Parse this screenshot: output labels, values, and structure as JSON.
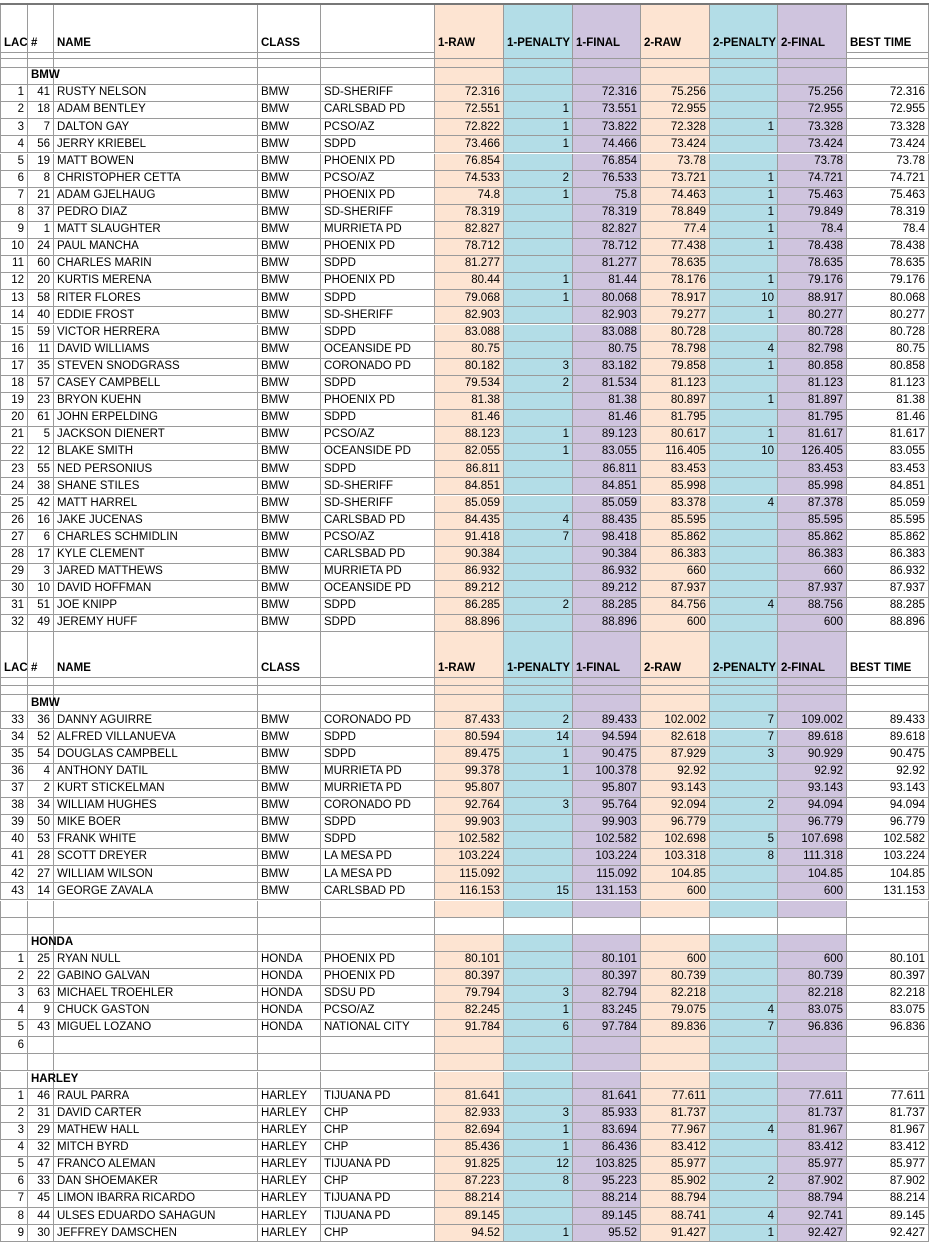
{
  "sections": [
    {
      "header": [
        "LAC",
        "#",
        "NAME",
        "CLASS",
        null,
        "1-RAW",
        "1-PENALTY",
        "1-FINAL",
        "2-RAW",
        "2-PENALTY",
        "2-FINAL",
        "BEST TIME"
      ],
      "groups": [
        {
          "label": "BMW",
          "rows": [
            [
              1,
              41,
              "RUSTY NELSON",
              "BMW",
              "SD-SHERIFF",
              72.316,
              null,
              72.316,
              75.256,
              null,
              75.256,
              72.316
            ],
            [
              2,
              18,
              "ADAM BENTLEY",
              "BMW",
              "CARLSBAD PD",
              72.551,
              1,
              73.551,
              72.955,
              null,
              72.955,
              72.955
            ],
            [
              3,
              7,
              "DALTON GAY",
              "BMW",
              "PCSO/AZ",
              72.822,
              1,
              73.822,
              72.328,
              1,
              73.328,
              73.328
            ],
            [
              4,
              56,
              "JERRY KRIEBEL",
              "BMW",
              "SDPD",
              73.466,
              1,
              74.466,
              73.424,
              null,
              73.424,
              73.424
            ],
            [
              5,
              19,
              "MATT BOWEN",
              "BMW",
              "PHOENIX PD",
              76.854,
              null,
              76.854,
              73.78,
              null,
              73.78,
              73.78
            ],
            [
              6,
              8,
              "CHRISTOPHER CETTA",
              "BMW",
              "PCSO/AZ",
              74.533,
              2,
              76.533,
              73.721,
              1,
              74.721,
              74.721
            ],
            [
              7,
              21,
              "ADAM GJELHAUG",
              "BMW",
              "PHOENIX PD",
              74.8,
              1,
              75.8,
              74.463,
              1,
              75.463,
              75.463
            ],
            [
              8,
              37,
              "PEDRO DIAZ",
              "BMW",
              "SD-SHERIFF",
              78.319,
              null,
              78.319,
              78.849,
              1,
              79.849,
              78.319
            ],
            [
              9,
              1,
              "MATT SLAUGHTER",
              "BMW",
              "MURRIETA PD",
              82.827,
              null,
              82.827,
              77.4,
              1,
              78.4,
              78.4
            ],
            [
              10,
              24,
              "PAUL MANCHA",
              "BMW",
              "PHOENIX PD",
              78.712,
              null,
              78.712,
              77.438,
              1,
              78.438,
              78.438
            ],
            [
              11,
              60,
              "CHARLES MARIN",
              "BMW",
              "SDPD",
              81.277,
              null,
              81.277,
              78.635,
              null,
              78.635,
              78.635
            ],
            [
              12,
              20,
              "KURTIS MERENA",
              "BMW",
              "PHOENIX PD",
              80.44,
              1,
              81.44,
              78.176,
              1,
              79.176,
              79.176
            ],
            [
              13,
              58,
              "RITER FLORES",
              "BMW",
              "SDPD",
              79.068,
              1,
              80.068,
              78.917,
              10,
              88.917,
              80.068
            ],
            [
              14,
              40,
              "EDDIE FROST",
              "BMW",
              "SD-SHERIFF",
              82.903,
              null,
              82.903,
              79.277,
              1,
              80.277,
              80.277
            ],
            [
              15,
              59,
              "VICTOR HERRERA",
              "BMW",
              "SDPD",
              83.088,
              null,
              83.088,
              80.728,
              null,
              80.728,
              80.728
            ],
            [
              16,
              11,
              "DAVID WILLIAMS",
              "BMW",
              "OCEANSIDE PD",
              80.75,
              null,
              80.75,
              78.798,
              4,
              82.798,
              80.75
            ],
            [
              17,
              35,
              "STEVEN SNODGRASS",
              "BMW",
              "CORONADO PD",
              80.182,
              3,
              83.182,
              79.858,
              1,
              80.858,
              80.858
            ],
            [
              18,
              57,
              "CASEY CAMPBELL",
              "BMW",
              "SDPD",
              79.534,
              2,
              81.534,
              81.123,
              null,
              81.123,
              81.123
            ],
            [
              19,
              23,
              "BRYON KUEHN",
              "BMW",
              "PHOENIX PD",
              81.38,
              null,
              81.38,
              80.897,
              1,
              81.897,
              81.38
            ],
            [
              20,
              61,
              "JOHN ERPELDING",
              "BMW",
              "SDPD",
              81.46,
              null,
              81.46,
              81.795,
              null,
              81.795,
              81.46
            ],
            [
              21,
              5,
              "JACKSON DIENERT",
              "BMW",
              "PCSO/AZ",
              88.123,
              1,
              89.123,
              80.617,
              1,
              81.617,
              81.617
            ],
            [
              22,
              12,
              "BLAKE SMITH",
              "BMW",
              "OCEANSIDE PD",
              82.055,
              1,
              83.055,
              116.405,
              10,
              126.405,
              83.055
            ],
            [
              23,
              55,
              "NED PERSONIUS",
              "BMW",
              "SDPD",
              86.811,
              null,
              86.811,
              83.453,
              null,
              83.453,
              83.453
            ],
            [
              24,
              38,
              "SHANE STILES",
              "BMW",
              "SD-SHERIFF",
              84.851,
              null,
              84.851,
              85.998,
              null,
              85.998,
              84.851
            ],
            [
              25,
              42,
              "MATT HARREL",
              "BMW",
              "SD-SHERIFF",
              85.059,
              null,
              85.059,
              83.378,
              4,
              87.378,
              85.059
            ],
            [
              26,
              16,
              "JAKE JUCENAS",
              "BMW",
              "CARLSBAD PD",
              84.435,
              4,
              88.435,
              85.595,
              null,
              85.595,
              85.595
            ],
            [
              27,
              6,
              "CHARLES SCHMIDLIN",
              "BMW",
              "PCSO/AZ",
              91.418,
              7,
              98.418,
              85.862,
              null,
              85.862,
              85.862
            ],
            [
              28,
              17,
              "KYLE CLEMENT",
              "BMW",
              "CARLSBAD PD",
              90.384,
              null,
              90.384,
              86.383,
              null,
              86.383,
              86.383
            ],
            [
              29,
              3,
              "JARED MATTHEWS",
              "BMW",
              "MURRIETA PD",
              86.932,
              null,
              86.932,
              660,
              null,
              660,
              86.932
            ],
            [
              30,
              10,
              "DAVID HOFFMAN",
              "BMW",
              "OCEANSIDE PD",
              89.212,
              null,
              89.212,
              87.937,
              null,
              87.937,
              87.937
            ],
            [
              31,
              51,
              "JOE KNIPP",
              "BMW",
              "SDPD",
              86.285,
              2,
              88.285,
              84.756,
              4,
              88.756,
              88.285
            ],
            [
              32,
              49,
              "JEREMY HUFF",
              "BMW",
              "SDPD",
              88.896,
              null,
              88.896,
              600,
              null,
              600,
              88.896
            ]
          ]
        }
      ]
    },
    {
      "header": [
        "LAC",
        "#",
        "NAME",
        "CLASS",
        null,
        "1-RAW",
        "1-PENALTY",
        "1-FINAL",
        "2-RAW",
        "2-PENALTY",
        "2-FINAL",
        "BEST TIME"
      ],
      "groups": [
        {
          "label": "BMW",
          "rows": [
            [
              33,
              36,
              "DANNY AGUIRRE",
              "BMW",
              "CORONADO PD",
              87.433,
              2,
              89.433,
              102.002,
              7,
              109.002,
              89.433
            ],
            [
              34,
              52,
              "ALFRED VILLANUEVA",
              "BMW",
              "SDPD",
              80.594,
              14,
              94.594,
              82.618,
              7,
              89.618,
              89.618
            ],
            [
              35,
              54,
              "DOUGLAS CAMPBELL",
              "BMW",
              "SDPD",
              89.475,
              1,
              90.475,
              87.929,
              3,
              90.929,
              90.475
            ],
            [
              36,
              4,
              "ANTHONY DATIL",
              "BMW",
              "MURRIETA PD",
              99.378,
              1,
              100.378,
              92.92,
              null,
              92.92,
              92.92
            ],
            [
              37,
              2,
              "KURT STICKELMAN",
              "BMW",
              "MURRIETA PD",
              95.807,
              null,
              95.807,
              93.143,
              null,
              93.143,
              93.143
            ],
            [
              38,
              34,
              "WILLIAM HUGHES",
              "BMW",
              "CORONADO PD",
              92.764,
              3,
              95.764,
              92.094,
              2,
              94.094,
              94.094
            ],
            [
              39,
              50,
              "MIKE BOER",
              "BMW",
              "SDPD",
              99.903,
              null,
              99.903,
              96.779,
              null,
              96.779,
              96.779
            ],
            [
              40,
              53,
              "FRANK WHITE",
              "BMW",
              "SDPD",
              102.582,
              null,
              102.582,
              102.698,
              5,
              107.698,
              102.582
            ],
            [
              41,
              28,
              "SCOTT DREYER",
              "BMW",
              "LA MESA PD",
              103.224,
              null,
              103.224,
              103.318,
              8,
              111.318,
              103.224
            ],
            [
              42,
              27,
              "WILLIAM WILSON",
              "BMW",
              "LA MESA PD",
              115.092,
              null,
              115.092,
              104.85,
              null,
              104.85,
              104.85
            ],
            [
              43,
              14,
              "GEORGE ZAVALA",
              "BMW",
              "CARLSBAD PD",
              116.153,
              15,
              131.153,
              600,
              null,
              600,
              131.153
            ]
          ]
        },
        {
          "label": "HONDA",
          "rows": [
            [
              1,
              25,
              "RYAN NULL",
              "HONDA",
              "PHOENIX PD",
              80.101,
              null,
              80.101,
              600,
              null,
              600,
              80.101
            ],
            [
              2,
              22,
              "GABINO GALVAN",
              "HONDA",
              "PHOENIX PD",
              80.397,
              null,
              80.397,
              80.739,
              null,
              80.739,
              80.397
            ],
            [
              3,
              63,
              "MICHAEL TROEHLER",
              "HONDA",
              "SDSU PD",
              79.794,
              3,
              82.794,
              82.218,
              null,
              82.218,
              82.218
            ],
            [
              4,
              9,
              "CHUCK GASTON",
              "HONDA",
              "PCSO/AZ",
              82.245,
              1,
              83.245,
              79.075,
              4,
              83.075,
              83.075
            ],
            [
              5,
              43,
              "MIGUEL LOZANO",
              "HONDA",
              "NATIONAL CITY",
              91.784,
              6,
              97.784,
              89.836,
              7,
              96.836,
              96.836
            ],
            [
              6,
              null,
              null,
              null,
              null,
              null,
              null,
              null,
              null,
              null,
              null,
              null
            ]
          ]
        },
        {
          "label": "HARLEY",
          "rows": [
            [
              1,
              46,
              "RAUL PARRA",
              "HARLEY",
              "TIJUANA PD",
              81.641,
              null,
              81.641,
              77.611,
              null,
              77.611,
              77.611
            ],
            [
              2,
              31,
              "DAVID CARTER",
              "HARLEY",
              "CHP",
              82.933,
              3,
              85.933,
              81.737,
              null,
              81.737,
              81.737
            ],
            [
              3,
              29,
              "MATHEW HALL",
              "HARLEY",
              "CHP",
              82.694,
              1,
              83.694,
              77.967,
              4,
              81.967,
              81.967
            ],
            [
              4,
              32,
              "MITCH BYRD",
              "HARLEY",
              "CHP",
              85.436,
              1,
              86.436,
              83.412,
              null,
              83.412,
              83.412
            ],
            [
              5,
              47,
              "FRANCO ALEMAN",
              "HARLEY",
              "TIJUANA PD",
              91.825,
              12,
              103.825,
              85.977,
              null,
              85.977,
              85.977
            ],
            [
              6,
              33,
              "DAN SHOEMAKER",
              "HARLEY",
              "CHP",
              87.223,
              8,
              95.223,
              85.902,
              2,
              87.902,
              87.902
            ],
            [
              7,
              45,
              "LIMON IBARRA RICARDO",
              "HARLEY",
              "TIJUANA PD",
              88.214,
              null,
              88.214,
              88.794,
              null,
              88.794,
              88.214
            ],
            [
              8,
              44,
              "ULSES EDUARDO SAHAGUN",
              "HARLEY",
              "TIJUANA PD",
              89.145,
              null,
              89.145,
              88.741,
              4,
              92.741,
              89.145
            ],
            [
              9,
              30,
              "JEFFREY DAMSCHEN",
              "HARLEY",
              "CHP",
              94.52,
              1,
              95.52,
              91.427,
              1,
              92.427,
              92.427
            ]
          ]
        }
      ]
    }
  ]
}
